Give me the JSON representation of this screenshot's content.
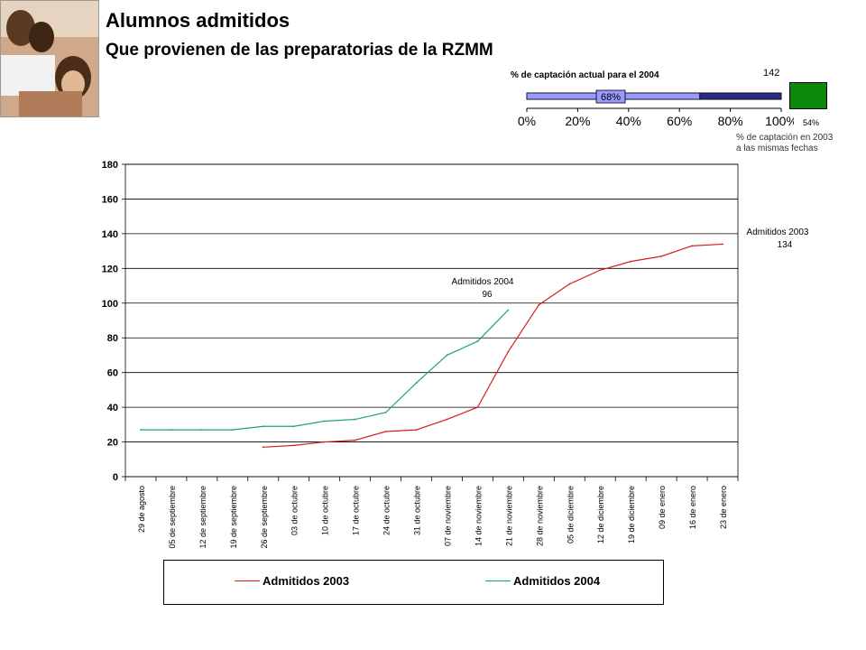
{
  "header": {
    "title": "Alumnos admitidos",
    "subtitle": "Que provienen de las preparatorias de la RZMM"
  },
  "gauge": {
    "title": "% de captación actual para el 2004",
    "value_label": "142",
    "bar_label": "68%",
    "fill_fraction": 0.68,
    "ticks": [
      "0%",
      "20%",
      "40%",
      "60%",
      "80%",
      "100%"
    ],
    "percent_2003": "54%",
    "note_line1": "% de captación en 2003",
    "note_line2": "a las mismas fechas",
    "colors": {
      "light": "#9999ff",
      "dark": "#2b2b8c",
      "green": "#0b8a0b"
    }
  },
  "chart_data": {
    "type": "line",
    "categories": [
      "29 de agosto",
      "05 de septiembre",
      "12 de septiembre",
      "19 de septiembre",
      "26 de septiembre",
      "03 de octubre",
      "10 de octubre",
      "17 de octubre",
      "24 de octubre",
      "31 de octubre",
      "07 de noviembre",
      "14 de noviembre",
      "21 de noviembre",
      "28 de noviembre",
      "05 de diciembre",
      "12 de diciembre",
      "19 de diciembre",
      "09 de enero",
      "16 de enero",
      "23 de enero"
    ],
    "ylim": [
      0,
      180
    ],
    "yticks": [
      0,
      20,
      40,
      60,
      80,
      100,
      120,
      140,
      160,
      180
    ],
    "grid": true,
    "series": [
      {
        "name": "Admitidos 2003",
        "color": "#d62020",
        "values": [
          null,
          null,
          null,
          null,
          17,
          18,
          20,
          21,
          26,
          27,
          33,
          40,
          72,
          99,
          111,
          119,
          124,
          127,
          133,
          134
        ]
      },
      {
        "name": "Admitidos 2004",
        "color": "#1f9e8c",
        "values": [
          27,
          27,
          27,
          27,
          29,
          29,
          32,
          33,
          37,
          54,
          70,
          78,
          96,
          null,
          null,
          null,
          null,
          null,
          null,
          null
        ]
      }
    ],
    "annotations": [
      {
        "text": "Admitidos 2003",
        "value": "134"
      },
      {
        "text": "Admitidos 2004",
        "value": "96"
      }
    ]
  }
}
